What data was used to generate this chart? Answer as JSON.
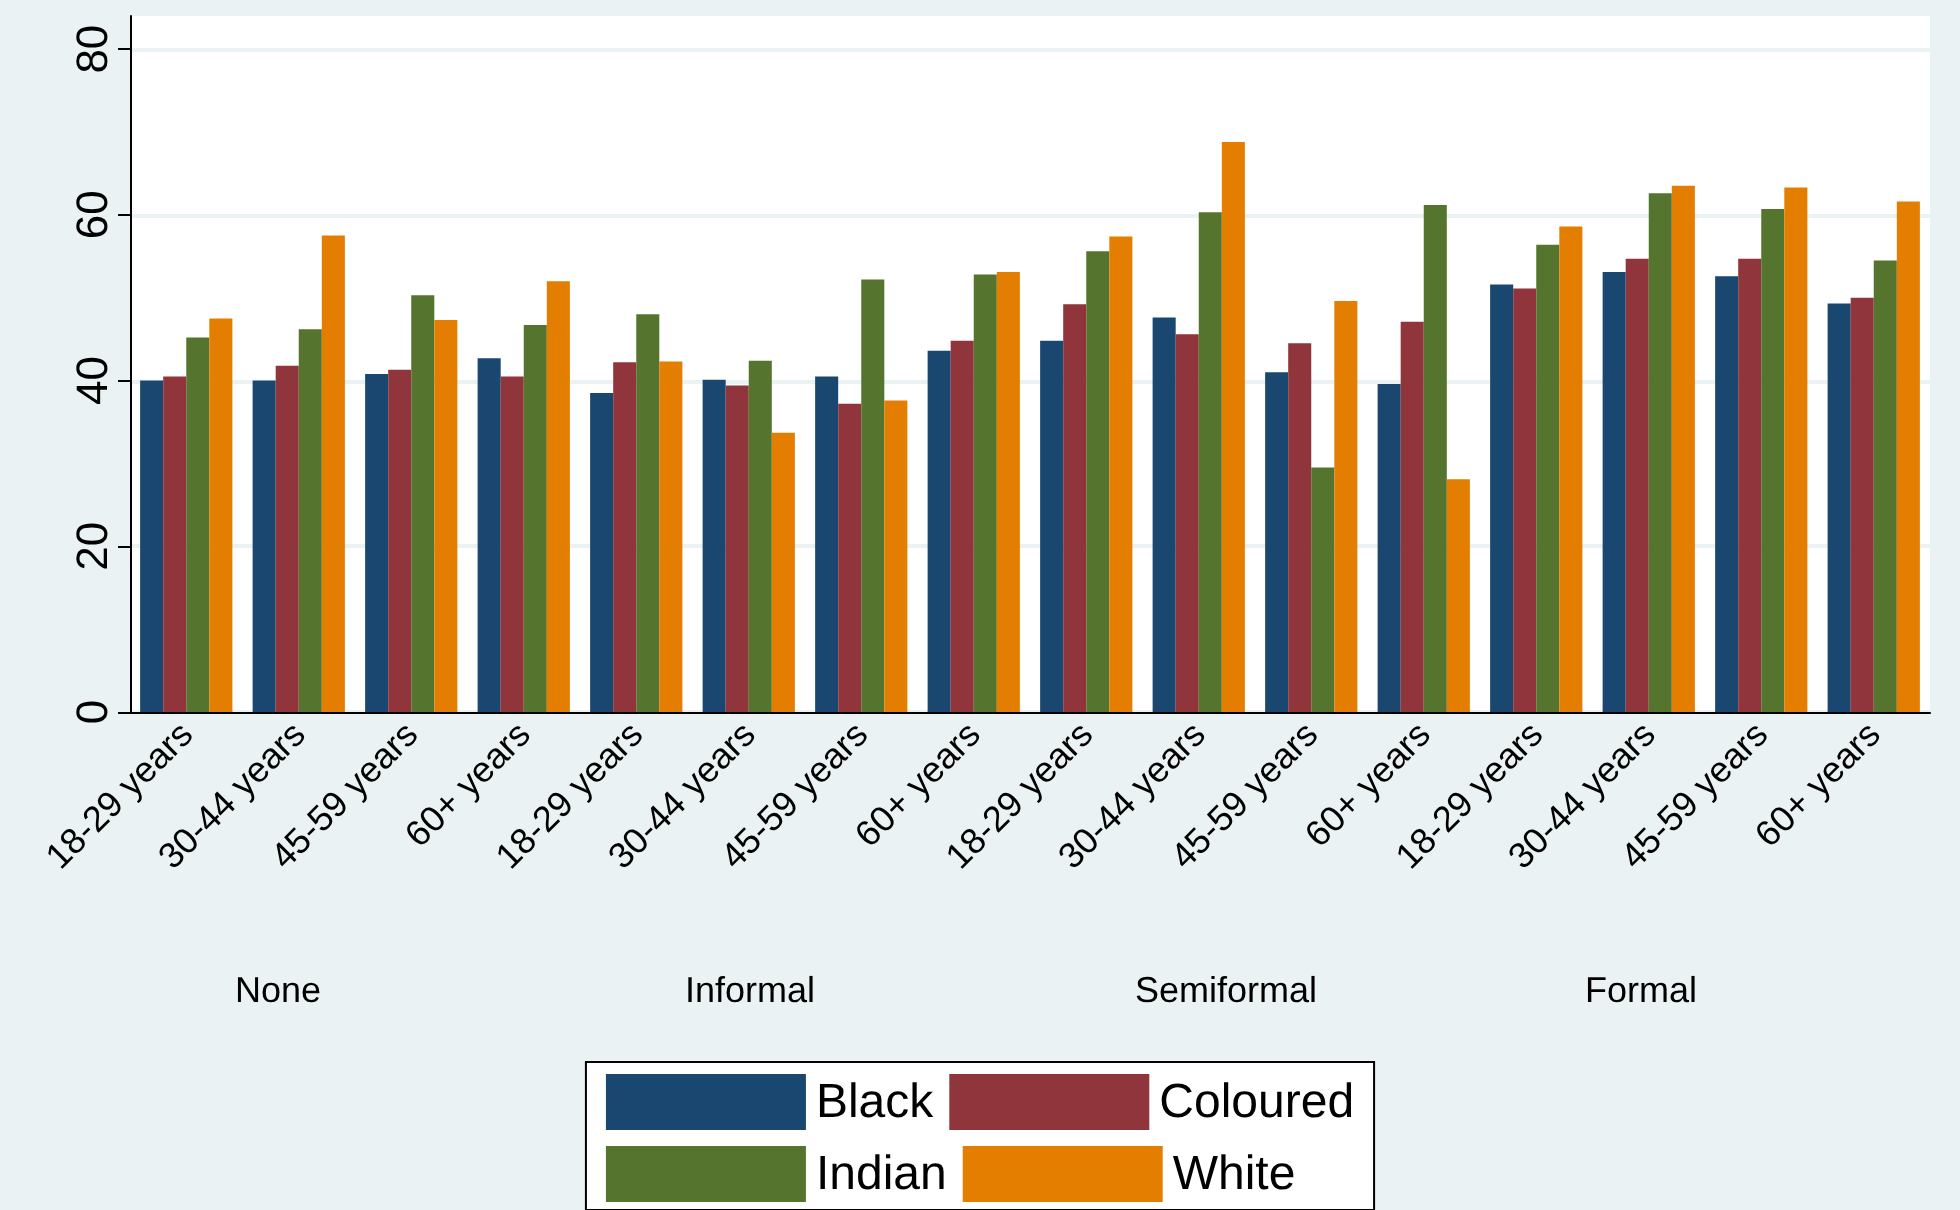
{
  "chart_data": {
    "type": "bar",
    "categories": [
      "18-29 years",
      "30-44 years",
      "45-59 years",
      "60+ years",
      "18-29 years",
      "30-44 years",
      "45-59 years",
      "60+ years",
      "18-29 years",
      "30-44 years",
      "45-59 years",
      "60+ years",
      "18-29 years",
      "30-44 years",
      "45-59 years",
      "60+ years"
    ],
    "series": [
      {
        "name": "Black",
        "color": "#1a476f",
        "values": [
          40,
          40,
          40.8,
          42.7,
          38.5,
          40.1,
          40.5,
          43.6,
          44.8,
          47.6,
          41,
          39.6,
          51.6,
          53.1,
          52.6,
          49.3
        ]
      },
      {
        "name": "Coloured",
        "color": "#90353b",
        "values": [
          40.5,
          41.8,
          41.3,
          40.5,
          42.2,
          39.4,
          37.2,
          44.8,
          49.2,
          45.6,
          44.5,
          47.1,
          51.1,
          54.7,
          54.7,
          50
        ]
      },
      {
        "name": "Indian",
        "color": "#55752f",
        "values": [
          45.2,
          46.2,
          50.3,
          46.7,
          48,
          42.4,
          52.2,
          52.8,
          55.6,
          60.3,
          29.5,
          61.2,
          56.4,
          62.6,
          60.7,
          54.5
        ]
      },
      {
        "name": "White",
        "color": "#e37e00",
        "values": [
          47.5,
          57.5,
          47.3,
          52,
          42.3,
          33.7,
          37.6,
          53.1,
          57.4,
          68.8,
          49.6,
          28.1,
          58.6,
          63.5,
          63.3,
          61.6
        ]
      }
    ],
    "annotations": [
      "None",
      "Informal",
      "Semiformal",
      "Formal"
    ],
    "ylim": [
      0,
      84
    ],
    "yticks": [
      0,
      20,
      40,
      60,
      80
    ],
    "grid": "y",
    "legend": "bottom"
  }
}
